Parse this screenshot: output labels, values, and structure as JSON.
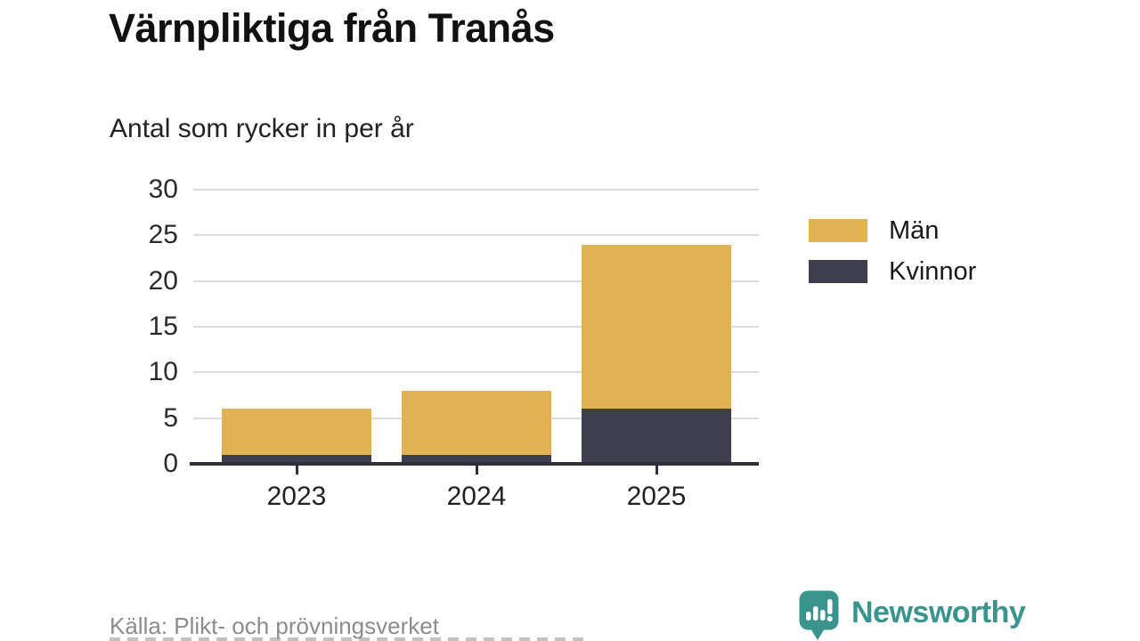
{
  "title": "Värnpliktiga från Tranås",
  "subtitle": "Antal som rycker in per år",
  "source": "Källa: Plikt- och prövningsverket",
  "brand": {
    "name": "Newsworthy",
    "color": "#3a948e",
    "icon": "speech-bubble-bar-chart-icon"
  },
  "colors": {
    "men_bar": "#e0b254",
    "women_bar": "#3f3e4e",
    "axis": "#2f2e3a",
    "gridline": "#dcdcdc",
    "tick_label": "#2b2b2b",
    "source_text": "#8c8c8c"
  },
  "chart_data": {
    "type": "bar",
    "stacked": true,
    "title": "Värnpliktiga från Tranås",
    "subtitle": "Antal som rycker in per år",
    "categories": [
      "2023",
      "2024",
      "2025"
    ],
    "series": [
      {
        "name": "Män",
        "color": "#e0b254",
        "values": [
          5,
          7,
          18
        ]
      },
      {
        "name": "Kvinnor",
        "color": "#3f3e4e",
        "values": [
          1,
          1,
          6
        ]
      }
    ],
    "stack_order_bottom_to_top": [
      "Kvinnor",
      "Män"
    ],
    "totals": [
      6,
      8,
      24
    ],
    "ylim": [
      0,
      30
    ],
    "yticks": [
      0,
      5,
      10,
      15,
      20,
      25,
      30
    ],
    "xlabel": "",
    "ylabel": "",
    "grid": true,
    "legend_position": "right"
  }
}
